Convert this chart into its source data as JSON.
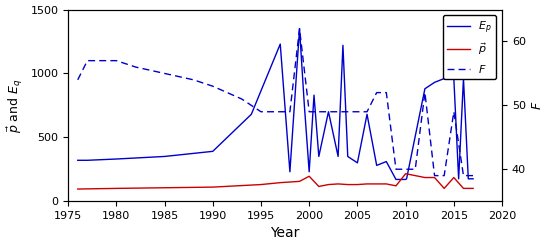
{
  "xlabel": "Year",
  "ylabel_left": "$\\vec{p}$ and $E_q$",
  "ylabel_right": "$F$",
  "ylim_left": [
    0,
    1500
  ],
  "ylim_right": [
    35,
    65
  ],
  "xlim": [
    1975,
    2020
  ],
  "Ep_x": [
    1976,
    1977,
    1980,
    1985,
    1990,
    1994,
    1997,
    1998,
    1999,
    1999.5,
    2000,
    2000.5,
    2001,
    2002,
    2003,
    2003.5,
    2004,
    2005,
    2006,
    2007,
    2008,
    2009,
    2010,
    2010.1,
    2012,
    2013,
    2014,
    2015,
    2015.5,
    2016,
    2016.5,
    2017
  ],
  "Ep_y": [
    320,
    320,
    330,
    350,
    390,
    680,
    1230,
    230,
    1350,
    750,
    230,
    830,
    350,
    700,
    350,
    1220,
    350,
    300,
    680,
    280,
    310,
    170,
    170,
    175,
    880,
    930,
    960,
    960,
    175,
    960,
    175,
    175
  ],
  "p_x": [
    1976,
    1980,
    1985,
    1990,
    1995,
    1997,
    1998,
    1999,
    2000,
    2001,
    2002,
    2003,
    2004,
    2005,
    2006,
    2007,
    2008,
    2009,
    2010,
    2011,
    2012,
    2013,
    2014,
    2015,
    2016,
    2017
  ],
  "p_y": [
    95,
    100,
    105,
    110,
    130,
    145,
    150,
    155,
    195,
    115,
    130,
    135,
    130,
    130,
    135,
    135,
    135,
    120,
    215,
    200,
    185,
    185,
    100,
    185,
    100,
    100
  ],
  "F_x": [
    1976,
    1977,
    1978,
    1980,
    1982,
    1985,
    1988,
    1990,
    1993,
    1995,
    1997,
    1998,
    1999,
    2000,
    2001,
    2002,
    2003,
    2004,
    2005,
    2006,
    2007,
    2008,
    2009,
    2010,
    2011,
    2012,
    2013,
    2014,
    2015,
    2016,
    2017
  ],
  "F_y": [
    54,
    57,
    57,
    57,
    56,
    55,
    54,
    53,
    51,
    49,
    49,
    49,
    62,
    49,
    49,
    49,
    49,
    49,
    49,
    49,
    52,
    52,
    40,
    40,
    40,
    52,
    39,
    39,
    49,
    39,
    39
  ],
  "line_color_Ep": "#0000cc",
  "line_color_p": "#cc0000",
  "line_color_F": "#0000cc",
  "background_color": "#ffffff",
  "yticks_left": [
    0,
    500,
    1000,
    1500
  ],
  "yticks_right": [
    40,
    50,
    60
  ],
  "xticks": [
    1975,
    1980,
    1985,
    1990,
    1995,
    2000,
    2005,
    2010,
    2015,
    2020
  ]
}
